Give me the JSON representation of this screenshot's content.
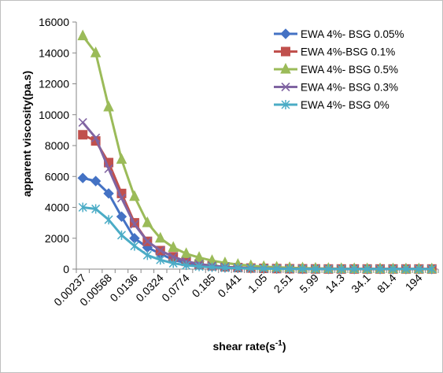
{
  "chart_data": {
    "type": "line",
    "title": "",
    "xlabel": "shear rate(s",
    "xlabel_superscript": "-1",
    "xlabel_suffix": ")",
    "ylabel": "apparent viscosity(pa.s)",
    "ylim": [
      0,
      16000
    ],
    "y_ticks": [
      "0",
      "2000",
      "4000",
      "6000",
      "8000",
      "10000",
      "12000",
      "14000",
      "16000"
    ],
    "x_tick_labels": [
      "0.00237",
      "0.00568",
      "0.0136",
      "0.0324",
      "0.0774",
      "0.185",
      "0.441",
      "1.05",
      "2.51",
      "5.99",
      "14.3",
      "34.1",
      "81.4",
      "194"
    ],
    "point_count": 28,
    "grid": false,
    "legend_position": "top-right",
    "series": [
      {
        "name": "EWA 4%- BSG 0.05%",
        "color": "#4472C4",
        "marker": "diamond",
        "values": [
          5900,
          5700,
          4900,
          3400,
          2000,
          1400,
          1000,
          600,
          400,
          260,
          180,
          120,
          80,
          60,
          40,
          30,
          20,
          15,
          10,
          10,
          5,
          5,
          5,
          5,
          5,
          5,
          5,
          5
        ]
      },
      {
        "name": "EWA 4%-BSG 0.1%",
        "color": "#C0504D",
        "marker": "square",
        "values": [
          8700,
          8300,
          6900,
          4900,
          3000,
          1800,
          1200,
          800,
          500,
          330,
          220,
          150,
          100,
          70,
          50,
          35,
          25,
          20,
          15,
          10,
          10,
          10,
          10,
          10,
          10,
          10,
          10,
          10
        ]
      },
      {
        "name": "EWA 4%- BSG 0.5%",
        "color": "#9BBB59",
        "marker": "triangle",
        "values": [
          15100,
          14000,
          10500,
          7100,
          4700,
          3000,
          2000,
          1400,
          1000,
          750,
          550,
          400,
          300,
          220,
          160,
          120,
          90,
          70,
          50,
          40,
          30,
          25,
          20,
          20,
          15,
          15,
          10,
          10
        ]
      },
      {
        "name": "EWA 4%- BSG 0.3%",
        "color": "#8064A2",
        "marker": "x",
        "values": [
          9500,
          8500,
          6500,
          4600,
          2900,
          1800,
          1200,
          800,
          500,
          330,
          220,
          150,
          100,
          70,
          50,
          35,
          25,
          20,
          15,
          10,
          10,
          10,
          10,
          10,
          10,
          10,
          10,
          10
        ]
      },
      {
        "name": "EWA 4%- BSG 0%",
        "color": "#4BACC6",
        "marker": "star",
        "values": [
          4000,
          3900,
          3200,
          2200,
          1500,
          900,
          600,
          380,
          250,
          170,
          120,
          80,
          55,
          40,
          30,
          20,
          15,
          10,
          8,
          6,
          5,
          5,
          5,
          5,
          5,
          5,
          5,
          5
        ]
      }
    ]
  }
}
